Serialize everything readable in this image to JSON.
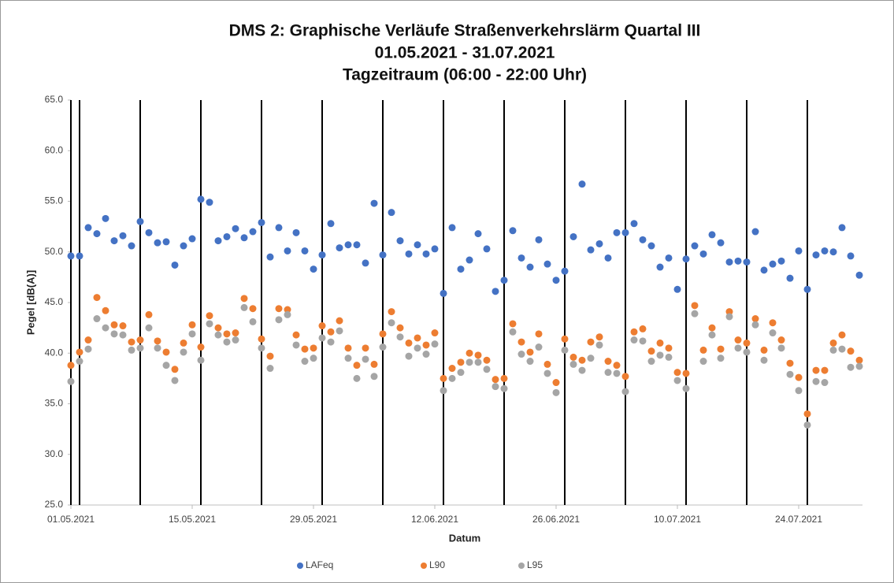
{
  "chart_data": {
    "type": "scatter",
    "title": [
      "DMS 2: Graphische Verläufe Straßenverkehrslärm Quartal III",
      "01.05.2021 - 31.07.2021",
      "Tagzeitraum (06:00 - 22:00 Uhr)"
    ],
    "x_label": "Datum",
    "y_label": "Pegel [dB(A)]",
    "x": [
      "2021-05-01",
      "2021-05-02",
      "2021-05-03",
      "2021-05-04",
      "2021-05-05",
      "2021-05-06",
      "2021-05-07",
      "2021-05-08",
      "2021-05-09",
      "2021-05-10",
      "2021-05-11",
      "2021-05-12",
      "2021-05-13",
      "2021-05-14",
      "2021-05-15",
      "2021-05-16",
      "2021-05-17",
      "2021-05-18",
      "2021-05-19",
      "2021-05-20",
      "2021-05-21",
      "2021-05-22",
      "2021-05-23",
      "2021-05-24",
      "2021-05-25",
      "2021-05-26",
      "2021-05-27",
      "2021-05-28",
      "2021-05-29",
      "2021-05-30",
      "2021-05-31",
      "2021-06-01",
      "2021-06-02",
      "2021-06-03",
      "2021-06-04",
      "2021-06-05",
      "2021-06-06",
      "2021-06-07",
      "2021-06-08",
      "2021-06-09",
      "2021-06-10",
      "2021-06-11",
      "2021-06-12",
      "2021-06-13",
      "2021-06-14",
      "2021-06-15",
      "2021-06-16",
      "2021-06-17",
      "2021-06-18",
      "2021-06-19",
      "2021-06-20",
      "2021-06-21",
      "2021-06-22",
      "2021-06-23",
      "2021-06-24",
      "2021-06-25",
      "2021-06-26",
      "2021-06-27",
      "2021-06-28",
      "2021-06-29",
      "2021-06-30",
      "2021-07-01",
      "2021-07-02",
      "2021-07-03",
      "2021-07-04",
      "2021-07-05",
      "2021-07-06",
      "2021-07-07",
      "2021-07-08",
      "2021-07-09",
      "2021-07-10",
      "2021-07-11",
      "2021-07-12",
      "2021-07-13",
      "2021-07-14",
      "2021-07-15",
      "2021-07-16",
      "2021-07-17",
      "2021-07-18",
      "2021-07-19",
      "2021-07-20",
      "2021-07-21",
      "2021-07-22",
      "2021-07-23",
      "2021-07-24",
      "2021-07-25",
      "2021-07-26",
      "2021-07-27",
      "2021-07-28",
      "2021-07-29",
      "2021-07-30",
      "2021-07-31"
    ],
    "series": [
      {
        "name": "LAFeq",
        "color": "#4472c4",
        "values": [
          49.6,
          49.6,
          52.4,
          51.8,
          53.3,
          51.1,
          51.6,
          50.6,
          53.0,
          51.9,
          50.9,
          51.0,
          48.7,
          50.6,
          51.3,
          55.2,
          54.9,
          51.1,
          51.5,
          52.3,
          51.4,
          52.0,
          52.9,
          49.5,
          52.4,
          50.1,
          51.9,
          50.1,
          48.3,
          49.7,
          52.8,
          50.4,
          50.7,
          50.7,
          48.9,
          54.8,
          49.7,
          53.9,
          51.1,
          49.8,
          50.7,
          49.8,
          50.3,
          45.9,
          52.4,
          48.3,
          49.2,
          51.8,
          50.3,
          46.1,
          47.2,
          52.1,
          49.4,
          48.5,
          51.2,
          48.8,
          47.2,
          48.1,
          51.5,
          56.7,
          50.2,
          50.8,
          49.4,
          51.9,
          51.9,
          52.8,
          51.2,
          50.6,
          48.5,
          49.4,
          46.3,
          49.3,
          50.6,
          49.8,
          51.7,
          50.9,
          49.0,
          49.1,
          49.0,
          52.0,
          48.2,
          48.8,
          49.1,
          47.4,
          50.1,
          46.3,
          49.7,
          50.1,
          50.0,
          52.4,
          49.6,
          47.7
        ]
      },
      {
        "name": "L90",
        "color": "#ed7d31",
        "values": [
          38.8,
          40.1,
          41.3,
          45.5,
          44.2,
          42.8,
          42.7,
          41.1,
          41.3,
          43.8,
          41.2,
          40.1,
          38.4,
          41.0,
          42.8,
          40.6,
          43.7,
          42.5,
          41.9,
          42.0,
          45.4,
          44.4,
          41.4,
          39.7,
          44.4,
          44.3,
          41.8,
          40.4,
          40.5,
          42.7,
          42.1,
          43.2,
          40.5,
          38.8,
          40.5,
          38.9,
          41.9,
          44.1,
          42.5,
          41.0,
          41.5,
          40.8,
          42.0,
          37.5,
          38.5,
          39.1,
          40.0,
          39.8,
          39.3,
          37.4,
          37.5,
          42.9,
          41.1,
          40.1,
          41.9,
          38.9,
          37.1,
          41.4,
          39.6,
          39.3,
          41.1,
          41.6,
          39.2,
          38.8,
          37.7,
          42.1,
          42.4,
          40.2,
          41.0,
          40.5,
          38.1,
          38.0,
          44.7,
          40.3,
          42.5,
          40.4,
          44.1,
          41.3,
          41.0,
          43.4,
          40.3,
          43.0,
          41.3,
          39.0,
          37.6,
          34.0,
          38.3,
          38.3,
          41.0,
          41.8,
          40.2,
          39.3
        ]
      },
      {
        "name": "L95",
        "color": "#a5a5a5",
        "values": [
          37.2,
          39.2,
          40.4,
          43.4,
          42.5,
          41.9,
          41.8,
          40.3,
          40.5,
          42.5,
          40.5,
          38.8,
          37.3,
          40.1,
          41.9,
          39.3,
          42.9,
          41.8,
          41.1,
          41.3,
          44.5,
          43.1,
          40.5,
          38.5,
          43.3,
          43.8,
          40.8,
          39.2,
          39.5,
          41.5,
          41.1,
          42.2,
          39.5,
          37.5,
          39.4,
          37.7,
          40.6,
          43.0,
          41.6,
          39.7,
          40.5,
          39.9,
          40.9,
          36.3,
          37.5,
          38.1,
          39.1,
          39.1,
          38.4,
          36.7,
          36.5,
          42.1,
          39.9,
          39.2,
          40.6,
          38.0,
          36.1,
          40.3,
          38.9,
          38.3,
          39.5,
          40.8,
          38.1,
          38.0,
          36.2,
          41.3,
          41.2,
          39.2,
          39.8,
          39.6,
          37.3,
          36.5,
          43.9,
          39.2,
          41.8,
          39.5,
          43.6,
          40.5,
          40.1,
          42.8,
          39.3,
          42.0,
          40.5,
          37.9,
          36.3,
          32.9,
          37.2,
          37.1,
          40.3,
          40.4,
          38.6,
          38.7
        ]
      }
    ],
    "xlim": [
      "2021-05-01",
      "2021-07-31"
    ],
    "xticks": [
      {
        "value": "2021-05-01",
        "label": "01.05.2021"
      },
      {
        "value": "2021-05-15",
        "label": "15.05.2021"
      },
      {
        "value": "2021-05-29",
        "label": "29.05.2021"
      },
      {
        "value": "2021-06-12",
        "label": "12.06.2021"
      },
      {
        "value": "2021-06-26",
        "label": "26.06.2021"
      },
      {
        "value": "2021-07-10",
        "label": "10.07.2021"
      },
      {
        "value": "2021-07-24",
        "label": "24.07.2021"
      }
    ],
    "ylim": [
      25,
      65
    ],
    "yticks": [
      {
        "value": 25,
        "label": "25.0"
      },
      {
        "value": 30,
        "label": "30.0"
      },
      {
        "value": 35,
        "label": "35.0"
      },
      {
        "value": 40,
        "label": "40.0"
      },
      {
        "value": 45,
        "label": "45.0"
      },
      {
        "value": 50,
        "label": "50.0"
      },
      {
        "value": 55,
        "label": "55.0"
      },
      {
        "value": 60,
        "label": "60.0"
      },
      {
        "value": 65,
        "label": "65.0"
      }
    ],
    "reference_lines": [
      "2021-05-02",
      "2021-05-09",
      "2021-05-16",
      "2021-05-23",
      "2021-05-30",
      "2021-06-06",
      "2021-06-13",
      "2021-06-20",
      "2021-06-27",
      "2021-07-04",
      "2021-07-11",
      "2021-07-18",
      "2021-07-25"
    ],
    "legend": "bottom"
  }
}
